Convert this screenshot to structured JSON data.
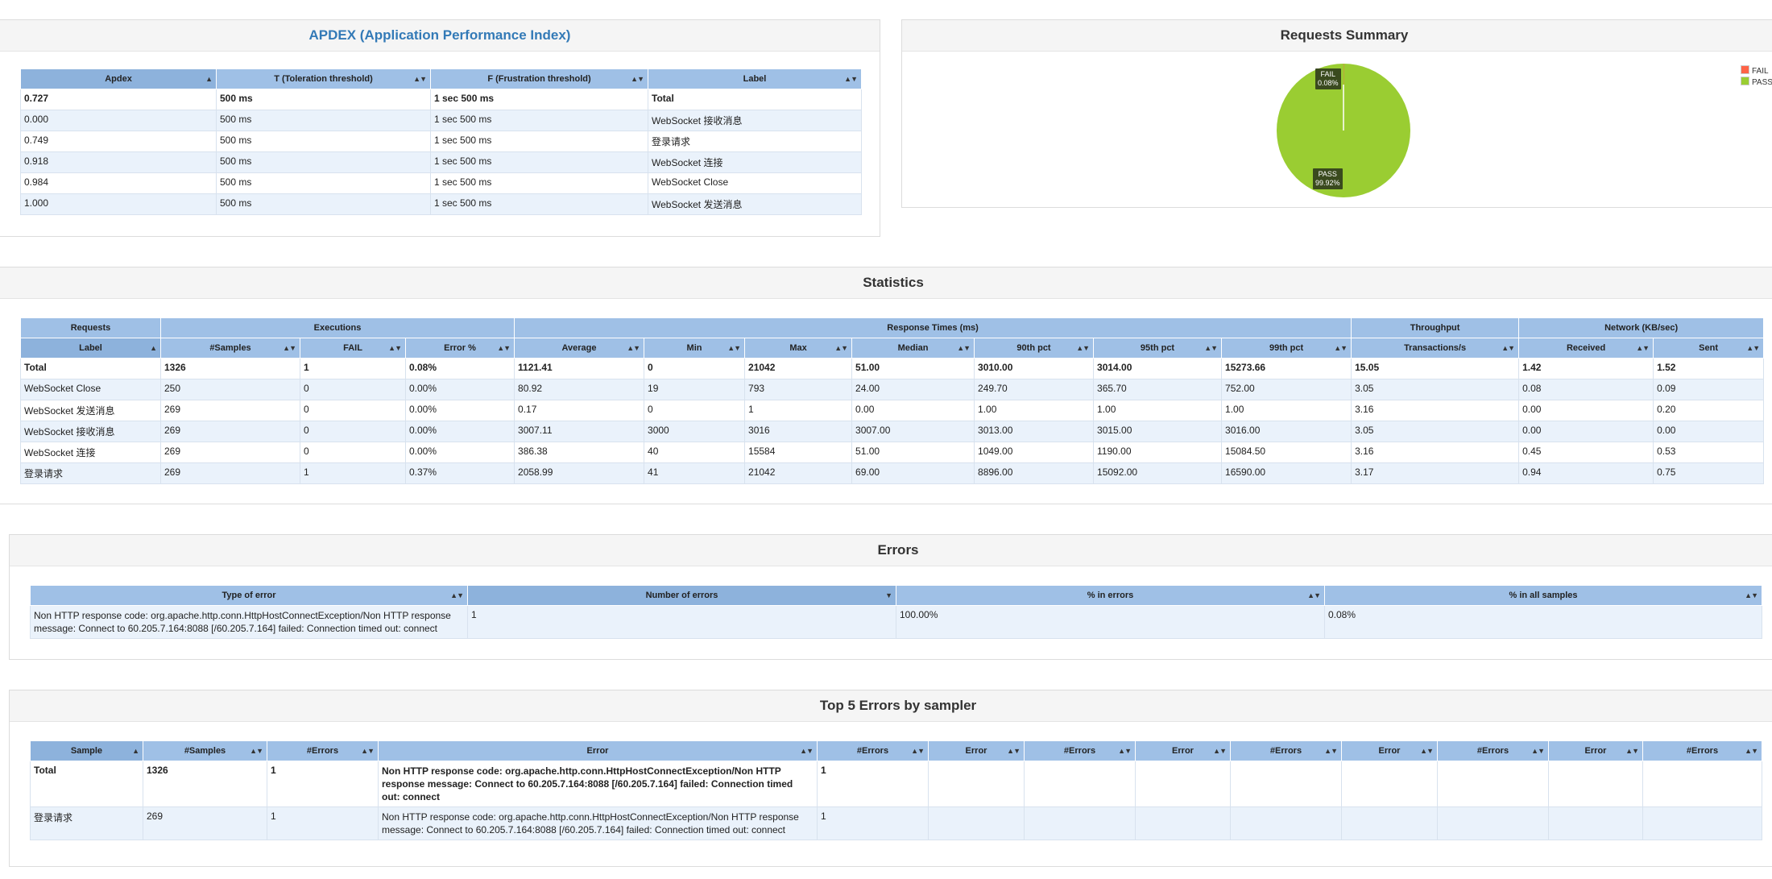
{
  "apdex": {
    "title": "APDEX (Application Performance Index)",
    "headers": [
      "Apdex",
      "T (Toleration threshold)",
      "F (Frustration threshold)",
      "Label"
    ],
    "rows": [
      [
        "0.727",
        "500 ms",
        "1 sec 500 ms",
        "Total"
      ],
      [
        "0.000",
        "500 ms",
        "1 sec 500 ms",
        "WebSocket 接收消息"
      ],
      [
        "0.749",
        "500 ms",
        "1 sec 500 ms",
        "登录请求"
      ],
      [
        "0.918",
        "500 ms",
        "1 sec 500 ms",
        "WebSocket 连接"
      ],
      [
        "0.984",
        "500 ms",
        "1 sec 500 ms",
        "WebSocket Close"
      ],
      [
        "1.000",
        "500 ms",
        "1 sec 500 ms",
        "WebSocket 发送消息"
      ]
    ]
  },
  "summary": {
    "title": "Requests Summary",
    "fail_label": "FAIL",
    "fail_pct": "0.08%",
    "pass_label": "PASS",
    "pass_pct": "99.92%",
    "legend": [
      {
        "name": "FAIL",
        "color": "#ff6347"
      },
      {
        "name": "PASS",
        "color": "#9acd32"
      }
    ]
  },
  "chart_data": {
    "type": "pie",
    "title": "Requests Summary",
    "categories": [
      "FAIL",
      "PASS"
    ],
    "values": [
      0.08,
      99.92
    ],
    "colors": [
      "#ff6347",
      "#9acd32"
    ],
    "legend_position": "top-right"
  },
  "statistics": {
    "title": "Statistics",
    "groups": [
      "Requests",
      "Executions",
      "Response Times (ms)",
      "Throughput",
      "Network (KB/sec)"
    ],
    "headers": [
      "Label",
      "#Samples",
      "FAIL",
      "Error %",
      "Average",
      "Min",
      "Max",
      "Median",
      "90th pct",
      "95th pct",
      "99th pct",
      "Transactions/s",
      "Received",
      "Sent"
    ],
    "rows": [
      [
        "Total",
        "1326",
        "1",
        "0.08%",
        "1121.41",
        "0",
        "21042",
        "51.00",
        "3010.00",
        "3014.00",
        "15273.66",
        "15.05",
        "1.42",
        "1.52"
      ],
      [
        "WebSocket Close",
        "250",
        "0",
        "0.00%",
        "80.92",
        "19",
        "793",
        "24.00",
        "249.70",
        "365.70",
        "752.00",
        "3.05",
        "0.08",
        "0.09"
      ],
      [
        "WebSocket 发送消息",
        "269",
        "0",
        "0.00%",
        "0.17",
        "0",
        "1",
        "0.00",
        "1.00",
        "1.00",
        "1.00",
        "3.16",
        "0.00",
        "0.20"
      ],
      [
        "WebSocket 接收消息",
        "269",
        "0",
        "0.00%",
        "3007.11",
        "3000",
        "3016",
        "3007.00",
        "3013.00",
        "3015.00",
        "3016.00",
        "3.05",
        "0.00",
        "0.00"
      ],
      [
        "WebSocket 连接",
        "269",
        "0",
        "0.00%",
        "386.38",
        "40",
        "15584",
        "51.00",
        "1049.00",
        "1190.00",
        "15084.50",
        "3.16",
        "0.45",
        "0.53"
      ],
      [
        "登录请求",
        "269",
        "1",
        "0.37%",
        "2058.99",
        "41",
        "21042",
        "69.00",
        "8896.00",
        "15092.00",
        "16590.00",
        "3.17",
        "0.94",
        "0.75"
      ]
    ]
  },
  "errors": {
    "title": "Errors",
    "headers": [
      "Type of error",
      "Number of errors",
      "% in errors",
      "% in all samples"
    ],
    "rows": [
      [
        "Non HTTP response code: org.apache.http.conn.HttpHostConnectException/Non HTTP response message: Connect to 60.205.7.164:8088 [/60.205.7.164] failed: Connection timed out: connect",
        "1",
        "100.00%",
        "0.08%"
      ]
    ]
  },
  "top5": {
    "title": "Top 5 Errors by sampler",
    "headers": [
      "Sample",
      "#Samples",
      "#Errors",
      "Error",
      "#Errors",
      "Error",
      "#Errors",
      "Error",
      "#Errors",
      "Error",
      "#Errors",
      "Error",
      "#Errors"
    ],
    "rows": [
      [
        "Total",
        "1326",
        "1",
        "Non HTTP response code: org.apache.http.conn.HttpHostConnectException/Non HTTP response message: Connect to 60.205.7.164:8088 [/60.205.7.164] failed: Connection timed out: connect",
        "1",
        "",
        "",
        "",
        "",
        "",
        "",
        "",
        ""
      ],
      [
        "登录请求",
        "269",
        "1",
        "Non HTTP response code: org.apache.http.conn.HttpHostConnectException/Non HTTP response message: Connect to 60.205.7.164:8088 [/60.205.7.164] failed: Connection timed out: connect",
        "1",
        "",
        "",
        "",
        "",
        "",
        "",
        "",
        ""
      ]
    ]
  }
}
